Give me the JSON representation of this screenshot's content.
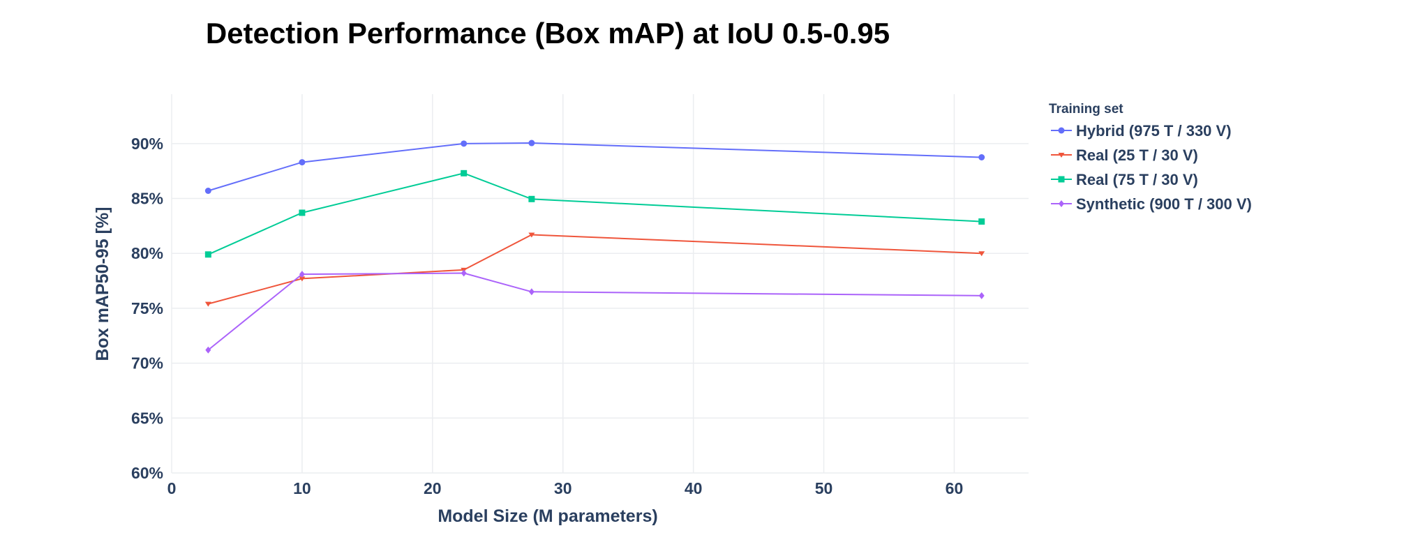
{
  "chart_data": {
    "type": "line",
    "title": "Detection Performance (Box mAP) at IoU 0.5-0.95",
    "xlabel": "Model Size (M parameters)",
    "ylabel": "Box mAP50-95 [%]",
    "xlim": [
      0,
      65.7
    ],
    "ylim": [
      60,
      94.5
    ],
    "xticks": [
      0,
      10,
      20,
      30,
      40,
      50,
      60
    ],
    "yticks": [
      60,
      65,
      70,
      75,
      80,
      85,
      90
    ],
    "ytick_suffix": "%",
    "grid": true,
    "legend_title": "Training set",
    "legend_position": "right",
    "x": [
      2.8,
      10.0,
      22.4,
      27.6,
      62.1
    ],
    "series": [
      {
        "name": "Hybrid (975 T / 330 V)",
        "color": "#636efa",
        "marker": "circle",
        "values": [
          85.7,
          88.3,
          90.0,
          90.05,
          88.75
        ]
      },
      {
        "name": "Real (25 T / 30 V)",
        "color": "#ef553b",
        "marker": "triangle-down",
        "values": [
          75.4,
          77.7,
          78.5,
          81.7,
          80.0
        ]
      },
      {
        "name": "Real (75 T / 30 V)",
        "color": "#00cc96",
        "marker": "square",
        "values": [
          79.9,
          83.7,
          87.3,
          84.95,
          82.9
        ]
      },
      {
        "name": "Synthetic (900 T / 300 V)",
        "color": "#ab63fa",
        "marker": "diamond",
        "values": [
          71.2,
          78.1,
          78.2,
          76.5,
          76.15
        ]
      }
    ]
  }
}
